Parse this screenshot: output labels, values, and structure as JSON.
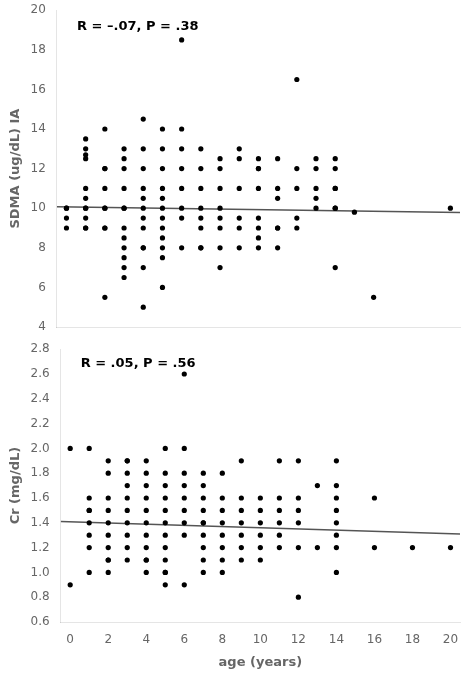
{
  "chart_data": [
    {
      "type": "scatter",
      "annotation": "R = –.07, P = .38",
      "ylabel": "SDMA (ug/dL) IA",
      "xlim": [
        -0.5,
        20.5
      ],
      "xticks": [
        0,
        2,
        4,
        6,
        8,
        10,
        12,
        14,
        16,
        18,
        20
      ],
      "ylim": [
        4,
        20
      ],
      "yticks": [
        4,
        6,
        8,
        10,
        12,
        14,
        16,
        18,
        20
      ],
      "tick_labels": "y",
      "grid": false,
      "series": [
        {
          "type": "scatter",
          "color": "#000000",
          "x": [
            0,
            0,
            0,
            0,
            1,
            1,
            1,
            1,
            1,
            1,
            1,
            1,
            1,
            1,
            1,
            2,
            2,
            2,
            2,
            2,
            2,
            2,
            2,
            2,
            3,
            3,
            3,
            3,
            3,
            3,
            3,
            3,
            3,
            3,
            3,
            3,
            4,
            4,
            4,
            4,
            4,
            4,
            4,
            4,
            4,
            4,
            4,
            4,
            5,
            5,
            5,
            5,
            5,
            5,
            5,
            5,
            5,
            5,
            5,
            5,
            6,
            6,
            6,
            6,
            6,
            6,
            6,
            6,
            7,
            7,
            7,
            7,
            7,
            7,
            7,
            7,
            8,
            8,
            8,
            8,
            8,
            8,
            8,
            8,
            9,
            9,
            9,
            9,
            9,
            9,
            10,
            10,
            10,
            10,
            10,
            10,
            10,
            10,
            11,
            11,
            11,
            11,
            11,
            11,
            12,
            12,
            12,
            12,
            12,
            13,
            13,
            13,
            13,
            13,
            14,
            14,
            14,
            14,
            14,
            14,
            14,
            15,
            16,
            20
          ],
          "values": [
            10.0,
            10.0,
            9.5,
            9.0,
            13.5,
            13.0,
            12.7,
            12.5,
            11.0,
            10.5,
            10.0,
            10.0,
            9.5,
            9.0,
            9.0,
            14.0,
            12.0,
            12.0,
            11.0,
            10.0,
            10.0,
            9.0,
            9.0,
            5.5,
            13.0,
            12.5,
            12.0,
            11.0,
            10.0,
            10.0,
            9.0,
            8.5,
            8.0,
            7.5,
            7.0,
            6.5,
            14.5,
            13.0,
            12.0,
            11.0,
            10.5,
            10.0,
            9.5,
            9.0,
            8.0,
            8.0,
            7.0,
            5.0,
            14.0,
            13.0,
            12.0,
            11.0,
            10.5,
            10.0,
            9.5,
            9.0,
            8.5,
            8.0,
            7.5,
            6.0,
            18.5,
            14.0,
            13.0,
            12.0,
            11.0,
            10.0,
            9.5,
            8.0,
            13.0,
            12.0,
            11.0,
            10.0,
            9.5,
            9.0,
            8.0,
            8.0,
            12.5,
            12.0,
            11.0,
            10.0,
            9.5,
            9.0,
            8.0,
            7.0,
            13.0,
            12.5,
            11.0,
            9.5,
            9.0,
            8.0,
            12.5,
            12.0,
            12.0,
            11.0,
            9.5,
            9.0,
            8.5,
            8.0,
            12.5,
            11.0,
            10.5,
            9.0,
            9.0,
            8.0,
            16.5,
            12.0,
            11.0,
            9.5,
            9.0,
            12.5,
            12.0,
            11.0,
            10.5,
            10.0,
            12.5,
            12.0,
            11.0,
            11.0,
            10.0,
            10.0,
            7.0,
            9.8,
            5.5,
            10.0
          ]
        },
        {
          "type": "line",
          "color": "#555555",
          "x": [
            -0.5,
            20.5
          ],
          "values": [
            10.07,
            9.78
          ]
        }
      ]
    },
    {
      "type": "scatter",
      "annotation": "R = .05, P = .56",
      "ylabel": "Cr (mg/dL)",
      "xlabel": "age (years)",
      "xlim": [
        -0.5,
        20.5
      ],
      "xticks": [
        0,
        2,
        4,
        6,
        8,
        10,
        12,
        14,
        16,
        18,
        20
      ],
      "ylim": [
        0.6,
        2.8
      ],
      "yticks": [
        0.6,
        0.8,
        {
          "value": 1.0,
          "label": "1.0"
        },
        1.2,
        1.4,
        1.6,
        1.8,
        {
          "value": 2.0,
          "label": "2.0"
        },
        2.2,
        2.4,
        2.6,
        2.8
      ],
      "grid": false,
      "series": [
        {
          "type": "scatter",
          "color": "#000000",
          "x": [
            0,
            0,
            1,
            1,
            1,
            1,
            1,
            1,
            1,
            1,
            2,
            2,
            2,
            2,
            2,
            2,
            2,
            2,
            2,
            2,
            3,
            3,
            3,
            3,
            3,
            3,
            3,
            3,
            3,
            3,
            4,
            4,
            4,
            4,
            4,
            4,
            4,
            4,
            4,
            4,
            4,
            5,
            5,
            5,
            5,
            5,
            5,
            5,
            5,
            5,
            5,
            5,
            5,
            6,
            6,
            6,
            6,
            6,
            6,
            6,
            6,
            6,
            7,
            7,
            7,
            7,
            7,
            7,
            7,
            7,
            7,
            7,
            8,
            8,
            8,
            8,
            8,
            8,
            8,
            8,
            9,
            9,
            9,
            9,
            9,
            9,
            9,
            10,
            10,
            10,
            10,
            10,
            10,
            11,
            11,
            11,
            11,
            11,
            11,
            12,
            12,
            12,
            12,
            12,
            12,
            13,
            13,
            14,
            14,
            14,
            14,
            14,
            14,
            14,
            14,
            16,
            16,
            18,
            20
          ],
          "values": [
            2.0,
            0.9,
            2.0,
            1.6,
            1.5,
            1.5,
            1.4,
            1.3,
            1.2,
            1.0,
            1.9,
            1.8,
            1.6,
            1.5,
            1.4,
            1.3,
            1.2,
            1.1,
            1.1,
            1.0,
            1.9,
            1.9,
            1.8,
            1.7,
            1.6,
            1.5,
            1.4,
            1.3,
            1.2,
            1.1,
            1.9,
            1.8,
            1.7,
            1.6,
            1.5,
            1.4,
            1.3,
            1.2,
            1.1,
            1.1,
            1.0,
            2.0,
            1.8,
            1.7,
            1.6,
            1.5,
            1.4,
            1.3,
            1.2,
            1.1,
            1.0,
            1.0,
            0.9,
            2.6,
            2.0,
            1.8,
            1.7,
            1.6,
            1.5,
            1.4,
            1.3,
            0.9,
            1.8,
            1.7,
            1.6,
            1.5,
            1.4,
            1.4,
            1.3,
            1.2,
            1.1,
            1.0,
            1.8,
            1.6,
            1.5,
            1.4,
            1.3,
            1.2,
            1.1,
            1.0,
            1.9,
            1.6,
            1.5,
            1.4,
            1.3,
            1.2,
            1.1,
            1.6,
            1.5,
            1.4,
            1.3,
            1.2,
            1.1,
            1.9,
            1.6,
            1.5,
            1.4,
            1.3,
            1.2,
            1.9,
            1.6,
            1.5,
            1.4,
            1.2,
            0.8,
            1.7,
            1.2,
            1.7,
            1.6,
            1.5,
            1.4,
            1.3,
            1.2,
            1.0,
            1.9,
            1.6,
            1.2,
            1.2,
            1.2
          ]
        },
        {
          "type": "line",
          "color": "#555555",
          "x": [
            -0.5,
            20.5
          ],
          "values": [
            1.41,
            1.31
          ]
        }
      ]
    }
  ]
}
